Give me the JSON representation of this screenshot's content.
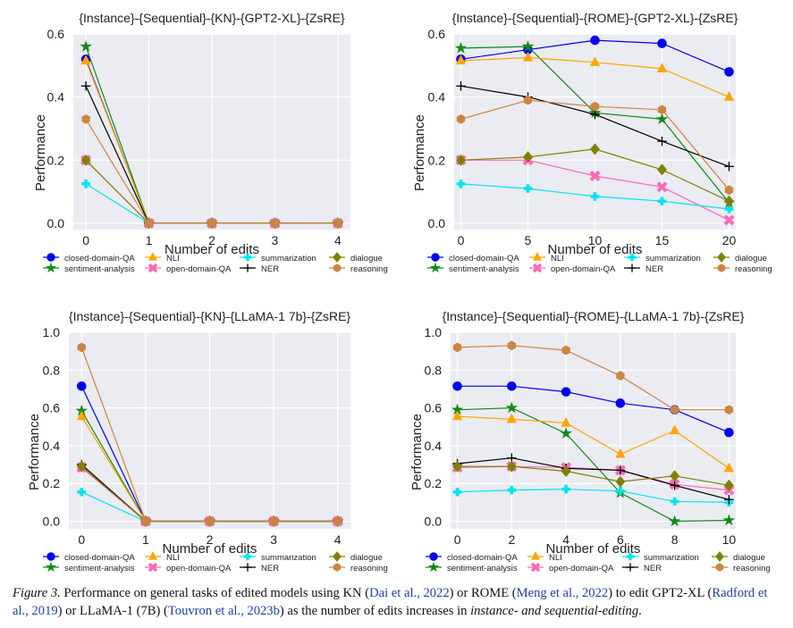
{
  "figure_caption": {
    "label": "Figure 3.",
    "part1": " Performance on general tasks of edited models using KN (",
    "cite1": "Dai et al., 2022",
    "part2": ") or ROME (",
    "cite2": "Meng et al., 2022",
    "part3": ") to edit GPT2-XL (",
    "cite3": "Radford et al., 2019",
    "part4": ") or LLaMA-1 (7B) (",
    "cite4": "Touvron et al., 2023b",
    "part5": ") as the number of edits increases in ",
    "emph": "instance- and sequential-editing",
    "part6": "."
  },
  "legend_entries": [
    {
      "name": "closed-domain-QA",
      "color": "#0000ee",
      "marker": "circle"
    },
    {
      "name": "sentiment-analysis",
      "color": "#138a13",
      "marker": "star"
    },
    {
      "name": "NLI",
      "color": "#ffa500",
      "marker": "triangle"
    },
    {
      "name": "open-domain-QA",
      "color": "#ff69b4",
      "marker": "x"
    },
    {
      "name": "summarization",
      "color": "#00e5ee",
      "marker": "plus"
    },
    {
      "name": "NER",
      "color": "#000000",
      "marker": "cross"
    },
    {
      "name": "dialogue",
      "color": "#808000",
      "marker": "diamond"
    },
    {
      "name": "reasoning",
      "color": "#cd853f",
      "marker": "hexagon"
    }
  ],
  "chart_data": [
    {
      "type": "line",
      "title": "{Instance}-{Sequential}-{KN}-{GPT2-XL}-{ZsRE}",
      "xlabel": "Number of edits",
      "ylabel": "Performance",
      "x": [
        0,
        1,
        2,
        3,
        4
      ],
      "xticks": [
        "0",
        "1",
        "2",
        "3",
        "4"
      ],
      "yticks": [
        "0.0",
        "0.2",
        "0.4",
        "0.6"
      ],
      "xlim": [
        -0.2,
        4.2
      ],
      "ylim": [
        -0.02,
        0.6
      ],
      "grid": true,
      "legend": "below",
      "series": [
        {
          "name": "closed-domain-QA",
          "values": [
            0.52,
            0,
            0,
            0,
            0
          ]
        },
        {
          "name": "sentiment-analysis",
          "values": [
            0.56,
            0,
            0,
            0,
            0
          ]
        },
        {
          "name": "NLI",
          "values": [
            0.515,
            0,
            0,
            0,
            0
          ]
        },
        {
          "name": "open-domain-QA",
          "values": [
            0.2,
            0,
            0,
            0,
            0
          ]
        },
        {
          "name": "summarization",
          "values": [
            0.125,
            0,
            0,
            0,
            0
          ]
        },
        {
          "name": "NER",
          "values": [
            0.435,
            0,
            0,
            0,
            0
          ]
        },
        {
          "name": "dialogue",
          "values": [
            0.2,
            0,
            0,
            0,
            0
          ]
        },
        {
          "name": "reasoning",
          "values": [
            0.33,
            0,
            0,
            0,
            0
          ]
        }
      ]
    },
    {
      "type": "line",
      "title": "{Instance}-{Sequential}-{ROME}-{GPT2-XL}-{ZsRE}",
      "xlabel": "Number of edits",
      "ylabel": "Performance",
      "x": [
        0,
        5,
        10,
        15,
        20
      ],
      "xticks": [
        "0",
        "5",
        "10",
        "15",
        "20"
      ],
      "yticks": [
        "0.0",
        "0.2",
        "0.4",
        "0.6"
      ],
      "xlim": [
        -0.5,
        20.5
      ],
      "ylim": [
        -0.02,
        0.6
      ],
      "grid": true,
      "legend": "below",
      "series": [
        {
          "name": "closed-domain-QA",
          "values": [
            0.52,
            0.55,
            0.58,
            0.57,
            0.48
          ]
        },
        {
          "name": "sentiment-analysis",
          "values": [
            0.555,
            0.56,
            0.35,
            0.33,
            0.065
          ]
        },
        {
          "name": "NLI",
          "values": [
            0.515,
            0.525,
            0.51,
            0.49,
            0.4
          ]
        },
        {
          "name": "open-domain-QA",
          "values": [
            0.2,
            0.2,
            0.15,
            0.115,
            0.01
          ]
        },
        {
          "name": "summarization",
          "values": [
            0.125,
            0.11,
            0.085,
            0.07,
            0.045
          ]
        },
        {
          "name": "NER",
          "values": [
            0.435,
            0.4,
            0.345,
            0.26,
            0.18
          ]
        },
        {
          "name": "dialogue",
          "values": [
            0.2,
            0.21,
            0.235,
            0.17,
            0.07
          ]
        },
        {
          "name": "reasoning",
          "values": [
            0.33,
            0.39,
            0.37,
            0.36,
            0.105
          ]
        }
      ]
    },
    {
      "type": "line",
      "title": "{Instance}-{Sequential}-{KN}-{LLaMA-1 7b}-{ZsRE}",
      "xlabel": "Number of edits",
      "ylabel": "Performance",
      "x": [
        0,
        1,
        2,
        3,
        4
      ],
      "xticks": [
        "0",
        "1",
        "2",
        "3",
        "4"
      ],
      "yticks": [
        "0.0",
        "0.2",
        "0.4",
        "0.6",
        "0.8",
        "1.0"
      ],
      "xlim": [
        -0.2,
        4.2
      ],
      "ylim": [
        -0.04,
        1.0
      ],
      "grid": true,
      "legend": "below",
      "series": [
        {
          "name": "closed-domain-QA",
          "values": [
            0.715,
            0,
            0,
            0,
            0
          ]
        },
        {
          "name": "sentiment-analysis",
          "values": [
            0.585,
            0,
            0,
            0,
            0
          ]
        },
        {
          "name": "NLI",
          "values": [
            0.555,
            0,
            0,
            0,
            0
          ]
        },
        {
          "name": "open-domain-QA",
          "values": [
            0.285,
            0,
            0,
            0,
            0
          ]
        },
        {
          "name": "summarization",
          "values": [
            0.155,
            0,
            0,
            0,
            0
          ]
        },
        {
          "name": "NER",
          "values": [
            0.3,
            0,
            0,
            0,
            0
          ]
        },
        {
          "name": "dialogue",
          "values": [
            0.29,
            0,
            0,
            0,
            0
          ]
        },
        {
          "name": "reasoning",
          "values": [
            0.92,
            0,
            0,
            0,
            0
          ]
        }
      ]
    },
    {
      "type": "line",
      "title": "{Instance}-{Sequential}-{ROME}-{LLaMA-1 7b}-{ZsRE}",
      "xlabel": "Number of edits",
      "ylabel": "Performance",
      "x": [
        0,
        2,
        4,
        6,
        8,
        10
      ],
      "xticks": [
        "0",
        "2",
        "4",
        "6",
        "8",
        "10"
      ],
      "yticks": [
        "0.0",
        "0.2",
        "0.4",
        "0.6",
        "0.8",
        "1.0"
      ],
      "xlim": [
        -0.25,
        10.25
      ],
      "ylim": [
        -0.04,
        1.0
      ],
      "grid": true,
      "legend": "below",
      "series": [
        {
          "name": "closed-domain-QA",
          "values": [
            0.715,
            0.715,
            0.685,
            0.625,
            0.59,
            0.47
          ]
        },
        {
          "name": "sentiment-analysis",
          "values": [
            0.59,
            0.6,
            0.465,
            0.15,
            0.0,
            0.005
          ]
        },
        {
          "name": "NLI",
          "values": [
            0.555,
            0.54,
            0.52,
            0.355,
            0.48,
            0.28
          ]
        },
        {
          "name": "open-domain-QA",
          "values": [
            0.285,
            0.29,
            0.285,
            0.27,
            0.195,
            0.165
          ]
        },
        {
          "name": "summarization",
          "values": [
            0.155,
            0.165,
            0.17,
            0.16,
            0.105,
            0.1
          ]
        },
        {
          "name": "NER",
          "values": [
            0.305,
            0.335,
            0.28,
            0.27,
            0.19,
            0.115
          ]
        },
        {
          "name": "dialogue",
          "values": [
            0.29,
            0.29,
            0.265,
            0.21,
            0.24,
            0.19
          ]
        },
        {
          "name": "reasoning",
          "values": [
            0.92,
            0.93,
            0.905,
            0.77,
            0.59,
            0.59
          ]
        }
      ]
    }
  ]
}
